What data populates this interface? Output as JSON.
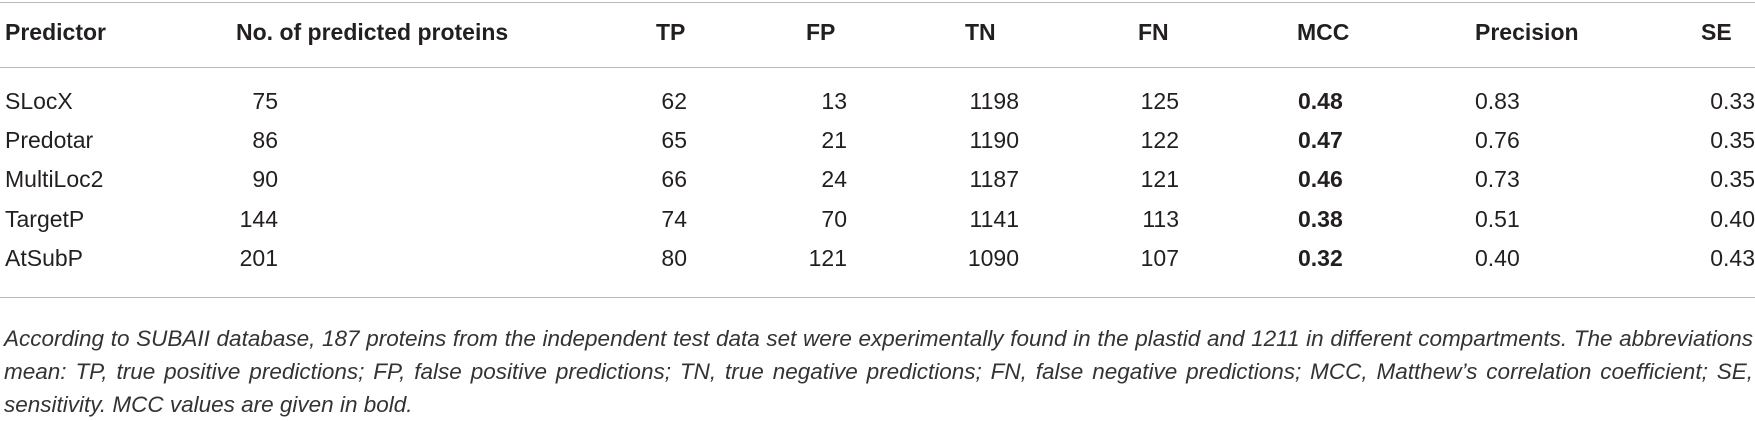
{
  "table": {
    "header": [
      "Predictor",
      "No. of predicted proteins",
      "TP",
      "FP",
      "TN",
      "FN",
      "MCC",
      "Precision",
      "SE"
    ],
    "rows": [
      [
        "SLocX",
        "75",
        "62",
        "13",
        "1198",
        "125",
        "0.48",
        "0.83",
        "0.33"
      ],
      [
        "Predotar",
        "86",
        "65",
        "21",
        "1190",
        "122",
        "0.47",
        "0.76",
        "0.35"
      ],
      [
        "MultiLoc2",
        "90",
        "66",
        "24",
        "1187",
        "121",
        "0.46",
        "0.73",
        "0.35"
      ],
      [
        "TargetP",
        "144",
        "74",
        "70",
        "1141",
        "113",
        "0.38",
        "0.51",
        "0.40"
      ],
      [
        "AtSubP",
        "201",
        "80",
        "121",
        "1090",
        "107",
        "0.32",
        "0.40",
        "0.43"
      ]
    ],
    "footnote": "According to SUBAII database, 187 proteins from the independent test data set were experimentally found in the plastid and 1211 in different compartments. The abbreviations mean: TP, true positive predictions; FP, false positive predictions; TN, true negative predictions; FN, false negative predictions; MCC, Matthew’s correlation coefficient; SE, sensitivity. MCC values are given in bold."
  }
}
